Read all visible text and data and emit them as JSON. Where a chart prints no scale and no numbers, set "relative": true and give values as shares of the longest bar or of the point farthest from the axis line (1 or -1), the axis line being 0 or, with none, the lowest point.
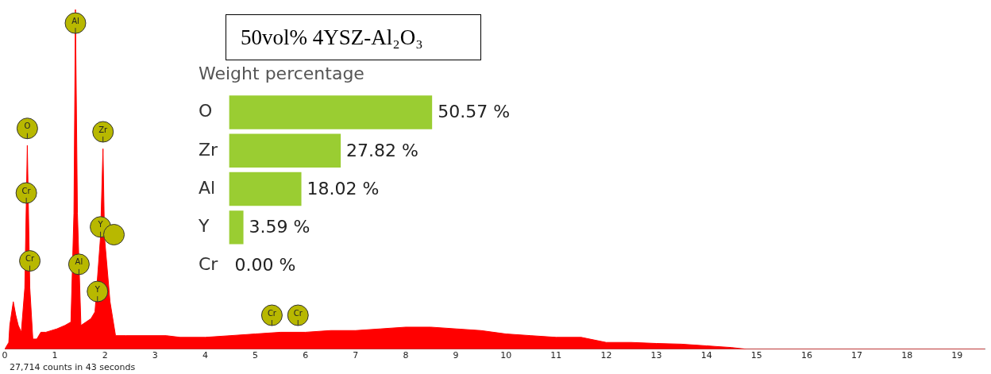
{
  "chart_data": [
    {
      "type": "area",
      "title": "50vol% 4YSZ-Al₂O₃",
      "relative": true,
      "color": "#ff0000",
      "x": [
        0,
        0.08,
        0.1,
        0.17,
        0.22,
        0.27,
        0.33,
        0.4,
        0.45,
        0.5,
        0.56,
        0.64,
        0.72,
        0.82,
        1.04,
        1.2,
        1.32,
        1.38,
        1.41,
        1.45,
        1.52,
        1.62,
        1.72,
        1.8,
        1.91,
        1.96,
        1.99,
        2.1,
        2.21,
        2.42,
        3.22,
        3.5,
        4,
        4.5,
        5,
        5.5,
        6,
        6.5,
        7,
        7.5,
        8,
        8.5,
        9,
        9.5,
        10,
        10.5,
        11,
        11.5,
        12,
        12.5,
        13,
        13.5,
        14,
        14.5,
        14.8,
        15,
        16,
        17,
        18,
        19,
        19.55
      ],
      "values": [
        0,
        0.02,
        0.07,
        0.14,
        0.1,
        0.07,
        0.05,
        0.18,
        0.6,
        0.18,
        0.03,
        0.03,
        0.05,
        0.05,
        0.06,
        0.07,
        0.08,
        0.4,
        1,
        0.4,
        0.07,
        0.08,
        0.09,
        0.11,
        0.33,
        0.59,
        0.33,
        0.14,
        0.04,
        0.04,
        0.04,
        0.035,
        0.035,
        0.04,
        0.045,
        0.05,
        0.05,
        0.055,
        0.055,
        0.06,
        0.065,
        0.065,
        0.06,
        0.055,
        0.045,
        0.04,
        0.035,
        0.035,
        0.02,
        0.02,
        0.017,
        0.015,
        0.01,
        0.005,
        0,
        0,
        0,
        0,
        0,
        0,
        0
      ],
      "xlim": [
        0,
        19.55
      ],
      "xticks": [
        0,
        1,
        2,
        3,
        4,
        5,
        6,
        7,
        8,
        9,
        10,
        11,
        12,
        13,
        14,
        15,
        16,
        17,
        18,
        19
      ],
      "annotations": [
        {
          "text": "O",
          "x": 0.45,
          "y": 0.65
        },
        {
          "text": "Cr",
          "x": 0.43,
          "y": 0.46
        },
        {
          "text": "Cr",
          "x": 0.5,
          "y": 0.26
        },
        {
          "text": "Al",
          "x": 1.41,
          "y": 0.96
        },
        {
          "text": "Al",
          "x": 1.48,
          "y": 0.25
        },
        {
          "text": "Zr",
          "x": 1.96,
          "y": 0.64
        },
        {
          "text": "Y",
          "x": 1.91,
          "y": 0.36
        },
        {
          "text": "Y",
          "x": 1.85,
          "y": 0.17
        },
        {
          "text": "Cr",
          "x": 5.33,
          "y": 0.1
        },
        {
          "text": "Cr",
          "x": 5.85,
          "y": 0.1
        },
        "27,714 counts in 43 seconds"
      ]
    },
    {
      "type": "bar",
      "orientation": "horizontal",
      "title": "Weight percentage",
      "color": "#9acd32",
      "categories": [
        "O",
        "Zr",
        "Al",
        "Y",
        "Cr"
      ],
      "values": [
        50.57,
        27.82,
        18.02,
        3.59,
        0.0
      ],
      "value_labels": [
        "50.57 %",
        "27.82 %",
        "18.02 %",
        "3.59 %",
        "0.00 %"
      ]
    }
  ]
}
